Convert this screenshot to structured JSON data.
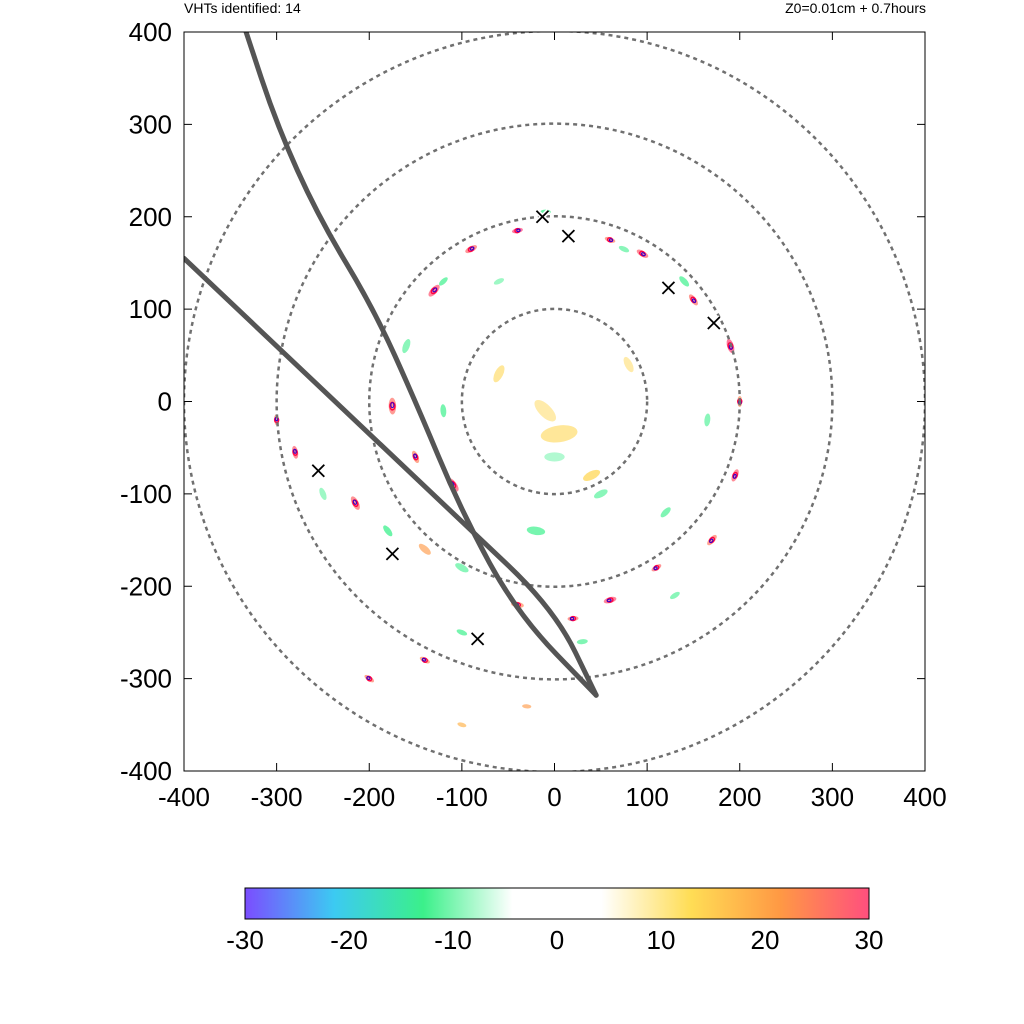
{
  "header": {
    "left": "VHTs identified: 14",
    "right": "Z0=0.01cm  + 0.7hours"
  },
  "chart_data": {
    "type": "scatter",
    "title": "",
    "xlabel": "",
    "ylabel": "",
    "xlim": [
      -400,
      400
    ],
    "ylim": [
      -400,
      400
    ],
    "xticks": [
      "-400",
      "-300",
      "-200",
      "-100",
      "0",
      "100",
      "200",
      "300",
      "400"
    ],
    "yticks": [
      "400",
      "300",
      "200",
      "100",
      "0",
      "-100",
      "-200",
      "-300",
      "-400"
    ],
    "range_rings": [
      100,
      200,
      300,
      400
    ],
    "vht_count": 14,
    "vht_markers": [
      {
        "x": -13,
        "y": 200
      },
      {
        "x": 15,
        "y": 179
      },
      {
        "x": 123,
        "y": 123
      },
      {
        "x": 172,
        "y": 85
      },
      {
        "x": -255,
        "y": -75
      },
      {
        "x": -175,
        "y": -165
      },
      {
        "x": -83,
        "y": -257
      }
    ],
    "tracks": [
      {
        "points": [
          [
            -333,
            400
          ],
          [
            -300,
            300
          ],
          [
            -255,
            200
          ],
          [
            -195,
            100
          ],
          [
            -150,
            0
          ],
          [
            -100,
            -120
          ],
          [
            -40,
            -230
          ],
          [
            45,
            -318
          ]
        ]
      },
      {
        "points": [
          [
            -400,
            155
          ],
          [
            -300,
            60
          ],
          [
            -200,
            -35
          ],
          [
            -100,
            -130
          ],
          [
            0,
            -225
          ],
          [
            45,
            -318
          ]
        ]
      }
    ],
    "features": [
      {
        "x": -175,
        "y": -5,
        "v": 25,
        "l": 18
      },
      {
        "x": -130,
        "y": 120,
        "v": 28,
        "l": 16
      },
      {
        "x": -90,
        "y": 165,
        "v": 26,
        "l": 14
      },
      {
        "x": -40,
        "y": 185,
        "v": 30,
        "l": 12
      },
      {
        "x": 60,
        "y": 175,
        "v": 24,
        "l": 12
      },
      {
        "x": 95,
        "y": 160,
        "v": 27,
        "l": 14
      },
      {
        "x": 150,
        "y": 110,
        "v": 25,
        "l": 14
      },
      {
        "x": 190,
        "y": 60,
        "v": 30,
        "l": 16
      },
      {
        "x": 200,
        "y": 0,
        "v": 22,
        "l": 12
      },
      {
        "x": 195,
        "y": -80,
        "v": 27,
        "l": 14
      },
      {
        "x": 170,
        "y": -150,
        "v": 24,
        "l": 14
      },
      {
        "x": 110,
        "y": -180,
        "v": 26,
        "l": 12
      },
      {
        "x": 60,
        "y": -215,
        "v": 28,
        "l": 14
      },
      {
        "x": 20,
        "y": -235,
        "v": 25,
        "l": 12
      },
      {
        "x": -40,
        "y": -220,
        "v": 22,
        "l": 14
      },
      {
        "x": -110,
        "y": -90,
        "v": 28,
        "l": 18
      },
      {
        "x": -150,
        "y": -60,
        "v": 23,
        "l": 14
      },
      {
        "x": -215,
        "y": -110,
        "v": 26,
        "l": 16
      },
      {
        "x": -280,
        "y": -55,
        "v": 27,
        "l": 14
      },
      {
        "x": -300,
        "y": -20,
        "v": 25,
        "l": 12
      },
      {
        "x": -140,
        "y": -160,
        "v": 20,
        "l": 16
      },
      {
        "x": -200,
        "y": -300,
        "v": 24,
        "l": 12
      },
      {
        "x": -140,
        "y": -280,
        "v": 22,
        "l": 12
      },
      {
        "x": -30,
        "y": -330,
        "v": 20,
        "l": 10
      },
      {
        "x": -100,
        "y": -350,
        "v": 18,
        "l": 10
      },
      {
        "x": 5,
        "y": -35,
        "v": 12,
        "l": 40
      },
      {
        "x": -10,
        "y": -10,
        "v": 10,
        "l": 30
      },
      {
        "x": 40,
        "y": -80,
        "v": 15,
        "l": 20
      },
      {
        "x": -60,
        "y": 30,
        "v": 12,
        "l": 20
      },
      {
        "x": 80,
        "y": 40,
        "v": 10,
        "l": 18
      },
      {
        "x": -160,
        "y": 60,
        "v": -12,
        "l": 16
      },
      {
        "x": -120,
        "y": 130,
        "v": -14,
        "l": 12
      },
      {
        "x": -10,
        "y": 205,
        "v": -15,
        "l": 12
      },
      {
        "x": 75,
        "y": 165,
        "v": -12,
        "l": 12
      },
      {
        "x": 140,
        "y": 130,
        "v": -14,
        "l": 14
      },
      {
        "x": -60,
        "y": 130,
        "v": -10,
        "l": 12
      },
      {
        "x": 165,
        "y": -20,
        "v": -12,
        "l": 14
      },
      {
        "x": 120,
        "y": -120,
        "v": -13,
        "l": 14
      },
      {
        "x": 50,
        "y": -100,
        "v": -12,
        "l": 16
      },
      {
        "x": -20,
        "y": -140,
        "v": -14,
        "l": 20
      },
      {
        "x": -100,
        "y": -180,
        "v": -12,
        "l": 16
      },
      {
        "x": -180,
        "y": -140,
        "v": -15,
        "l": 14
      },
      {
        "x": -250,
        "y": -100,
        "v": -10,
        "l": 14
      },
      {
        "x": -100,
        "y": -250,
        "v": -14,
        "l": 12
      },
      {
        "x": 30,
        "y": -260,
        "v": -13,
        "l": 12
      },
      {
        "x": 130,
        "y": -210,
        "v": -12,
        "l": 12
      },
      {
        "x": 0,
        "y": -60,
        "v": -8,
        "l": 22
      },
      {
        "x": -120,
        "y": -10,
        "v": -14,
        "l": 14
      }
    ]
  },
  "colorbar": {
    "ticks": [
      "-30",
      "-20",
      "-10",
      "0",
      "10",
      "20",
      "30"
    ],
    "range": [
      -30,
      30
    ],
    "stops": [
      "#7b4dff",
      "#3ccaf2",
      "#3bf08a",
      "#ffffff",
      "#ffffff",
      "#ffdd55",
      "#ff9944",
      "#ff4f7e"
    ]
  }
}
